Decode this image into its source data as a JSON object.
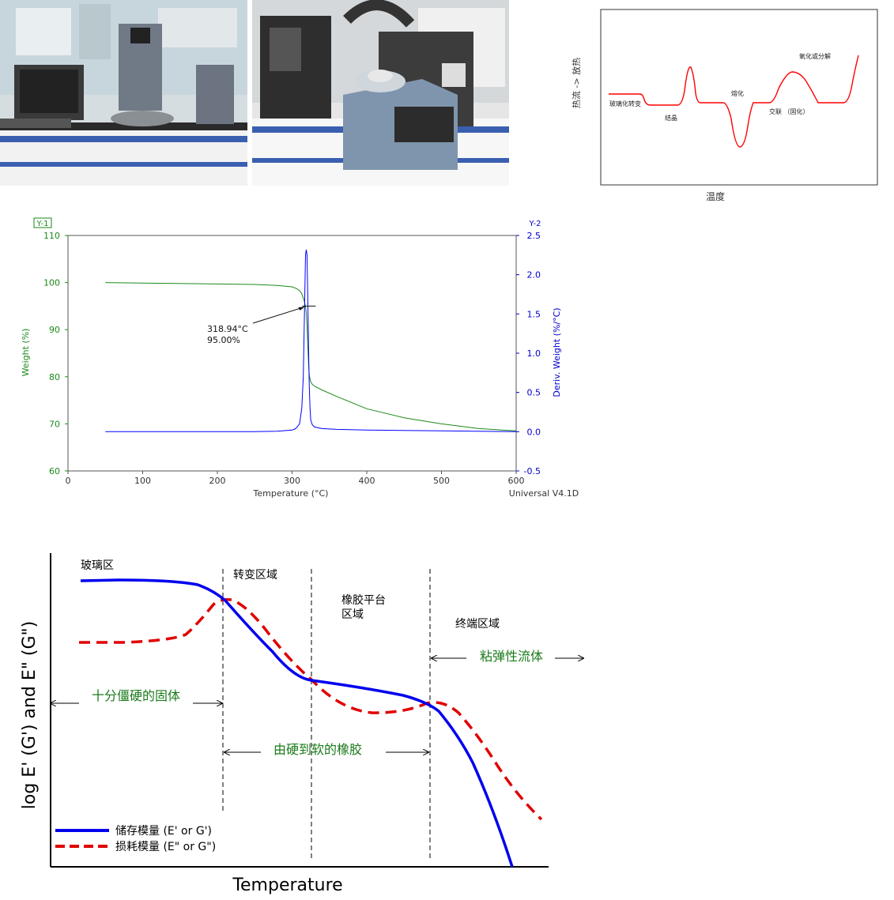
{
  "photos": [
    {
      "name": "lab-instrument-photo-1"
    },
    {
      "name": "lab-instrument-photo-2"
    }
  ],
  "dsc": {
    "ylabel": "热流 -> 放热",
    "xlabel": "温度",
    "annotations": [
      "玻璃化转变",
      "结晶",
      "熔化",
      "交联 （固化）",
      "氧化或分解"
    ]
  },
  "tga": {
    "y1_tag": "Y-1",
    "y2_tag": "Y-2",
    "ylabel": "Weight (%)",
    "y2label": "Deriv. Weight (%/°C)",
    "xlabel": "Temperature (°C)",
    "footer": "Universal V4.1D",
    "annotation_temp": "318.94°C",
    "annotation_weight": "95.00%",
    "x_ticks": [
      "0",
      "100",
      "200",
      "300",
      "400",
      "500",
      "600"
    ],
    "y_ticks": [
      "60",
      "70",
      "80",
      "90",
      "100",
      "110"
    ],
    "y2_ticks": [
      "-0.5",
      "0.0",
      "0.5",
      "1.0",
      "1.5",
      "2.0",
      "2.5"
    ]
  },
  "dma": {
    "ylabel": "log E' (G') and E\" (G\")",
    "xlabel": "Temperature",
    "regions": [
      "玻璃区",
      "转变区域",
      "橡胶平台\n区域",
      "终端区域"
    ],
    "region_line1": "橡胶平台",
    "region_line2": "区域",
    "arrow_labels": [
      "十分僵硬的固体",
      "由硬到软的橡胶",
      "粘弹性流体"
    ],
    "legend": [
      "储存模量 (E' or G')",
      "损耗模量 (E\" or G\")"
    ]
  },
  "chart_data": [
    {
      "type": "line",
      "xlabel": "温度",
      "ylabel": "热流 -> 放热",
      "grid": false,
      "series": [
        {
          "x": [
            0,
            1,
            2,
            3,
            4,
            5,
            6,
            7,
            8,
            9,
            10,
            11,
            12,
            13,
            14,
            15,
            16,
            17,
            18,
            19,
            20
          ],
          "values": [
            3,
            3,
            3,
            2.5,
            2.5,
            2.5,
            6,
            2.5,
            2.5,
            2.5,
            -3,
            2.5,
            2.5,
            4,
            5,
            4,
            2.5,
            2.5,
            2.5,
            5,
            8
          ]
        }
      ],
      "annotations": [
        "玻璃化转变",
        "结晶",
        "熔化",
        "交联 （固化）",
        "氧化或分解"
      ],
      "color": "#ff0000"
    },
    {
      "type": "line",
      "xlabel": "Temperature (°C)",
      "ylabel": "Weight (%)",
      "y2label": "Deriv. Weight (%/°C)",
      "xlim": [
        0,
        600
      ],
      "ylim": [
        60,
        110
      ],
      "y2lim": [
        -0.5,
        2.5
      ],
      "x_ticks": [
        0,
        100,
        200,
        300,
        400,
        500,
        600
      ],
      "y_ticks": [
        60,
        70,
        80,
        90,
        100,
        110
      ],
      "y2_ticks": [
        -0.5,
        0.0,
        0.5,
        1.0,
        1.5,
        2.0,
        2.5
      ],
      "grid": false,
      "series": [
        {
          "axis": "y1",
          "color": "#1a8a1a",
          "x": [
            50,
            100,
            200,
            250,
            280,
            300,
            305,
            310,
            313,
            316,
            318,
            319,
            320,
            321,
            322,
            323,
            324,
            325,
            327,
            330,
            340,
            360,
            400,
            450,
            500,
            550,
            600
          ],
          "y": [
            100,
            99.9,
            99.7,
            99.6,
            99.4,
            99.1,
            98.8,
            98.3,
            97.6,
            96.3,
            95.0,
            93.5,
            91.0,
            87.0,
            83.0,
            80.5,
            79.5,
            78.9,
            78.4,
            78.0,
            77.2,
            75.8,
            73.2,
            71.3,
            70.0,
            69.0,
            68.5
          ]
        },
        {
          "axis": "y2",
          "color": "#0000ff",
          "x": [
            50,
            150,
            250,
            280,
            300,
            305,
            310,
            313,
            315,
            316,
            317,
            318,
            319,
            320,
            321,
            322,
            323,
            324,
            325,
            327,
            330,
            340,
            360,
            400,
            500,
            600
          ],
          "y": [
            0.0,
            0.0,
            0.0,
            0.005,
            0.02,
            0.04,
            0.1,
            0.3,
            0.7,
            1.2,
            1.75,
            2.25,
            2.32,
            2.25,
            1.75,
            1.1,
            0.6,
            0.3,
            0.15,
            0.09,
            0.06,
            0.04,
            0.03,
            0.02,
            0.01,
            0.0
          ]
        }
      ],
      "annotations": [
        "318.94°C",
        "95.00%",
        "Universal V4.1D"
      ]
    },
    {
      "type": "line",
      "xlabel": "Temperature",
      "ylabel": "log E' (G') and E\" (G\")",
      "grid": false,
      "series": [
        {
          "name": "储存模量 (E' or G')",
          "color": "#0000ff",
          "style": "solid",
          "x": [
            0,
            10,
            20,
            30,
            35,
            40,
            45,
            50,
            55,
            60,
            65,
            70,
            75,
            80,
            85,
            90,
            95,
            100
          ],
          "values": [
            8,
            8,
            7.95,
            7.5,
            6.5,
            5.5,
            4.9,
            4.8,
            4.7,
            4.6,
            4.4,
            3.8,
            3.0,
            2.0,
            1.0,
            0.0,
            -0.5,
            -0.5
          ]
        },
        {
          "name": "损耗模量 (E\" or G\")",
          "color": "#ff0000",
          "style": "dashed",
          "x": [
            0,
            10,
            20,
            25,
            30,
            35,
            40,
            45,
            50,
            55,
            60,
            65,
            70,
            75,
            80,
            85,
            90,
            95
          ],
          "values": [
            6.2,
            6.3,
            6.5,
            7.0,
            7.4,
            6.8,
            5.8,
            4.9,
            4.4,
            4.2,
            4.4,
            4.6,
            4.5,
            4.1,
            3.4,
            2.6,
            1.9,
            1.4
          ]
        }
      ],
      "annotations": [
        "玻璃区",
        "转变区域",
        "橡胶平台 区域",
        "终端区域",
        "十分僵硬的固体",
        "由硬到软的橡胶",
        "粘弹性流体"
      ]
    }
  ]
}
